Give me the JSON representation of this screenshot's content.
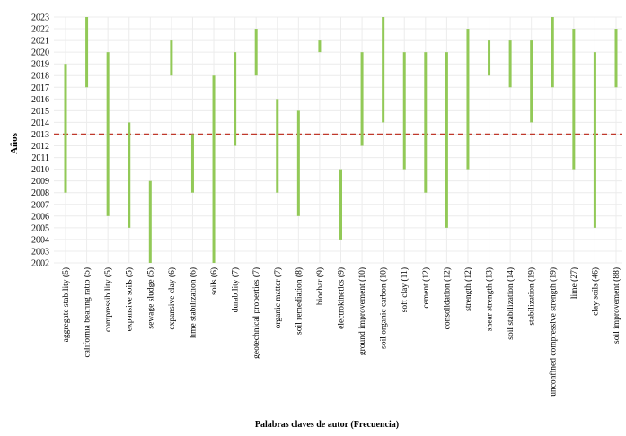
{
  "chart_data": {
    "type": "range-bar",
    "xlabel": "Palabras claves de autor (Frecuencia)",
    "ylabel": "Años",
    "ylim": [
      2002,
      2023
    ],
    "yticks": [
      2002,
      2003,
      2004,
      2005,
      2006,
      2007,
      2008,
      2009,
      2010,
      2011,
      2012,
      2013,
      2014,
      2015,
      2016,
      2017,
      2018,
      2019,
      2020,
      2021,
      2022,
      2023
    ],
    "grid": true,
    "bar_color": "#92c957",
    "reference_line": {
      "value": 2013,
      "color": "#c0392b",
      "style": "dashed"
    },
    "categories": [
      "aggregate stability (5)",
      "california bearing ratio (5)",
      "compressibility (5)",
      "expansive soils (5)",
      "sewage sludge (5)",
      "expansive clay (6)",
      "lime stabilization (6)",
      "soils (6)",
      "durability (7)",
      "geotechnical properties (7)",
      "organic matter (7)",
      "soil remediation (8)",
      "biochar (9)",
      "electrokinetics (9)",
      "ground improvement (10)",
      "soil organic carbon (10)",
      "soft clay (11)",
      "cement (12)",
      "consolidation (12)",
      "strength (12)",
      "shear strength (13)",
      "soil stabilization (14)",
      "stabilization (19)",
      "unconfined compressive strength (19)",
      "lime (27)",
      "clay soils (46)",
      "soil improvement (88)"
    ],
    "ranges": [
      [
        2008,
        2019
      ],
      [
        2017,
        2023
      ],
      [
        2006,
        2020
      ],
      [
        2005,
        2014
      ],
      [
        2002,
        2009
      ],
      [
        2018,
        2021
      ],
      [
        2008,
        2013
      ],
      [
        2002,
        2018
      ],
      [
        2012,
        2020
      ],
      [
        2018,
        2022
      ],
      [
        2008,
        2016
      ],
      [
        2006,
        2015
      ],
      [
        2020,
        2021
      ],
      [
        2004,
        2010
      ],
      [
        2012,
        2020
      ],
      [
        2014,
        2023
      ],
      [
        2010,
        2020
      ],
      [
        2008,
        2020
      ],
      [
        2005,
        2020
      ],
      [
        2010,
        2022
      ],
      [
        2018,
        2021
      ],
      [
        2017,
        2021
      ],
      [
        2014,
        2021
      ],
      [
        2017,
        2023
      ],
      [
        2010,
        2022
      ],
      [
        2005,
        2020
      ],
      [
        2017,
        2022
      ]
    ]
  }
}
